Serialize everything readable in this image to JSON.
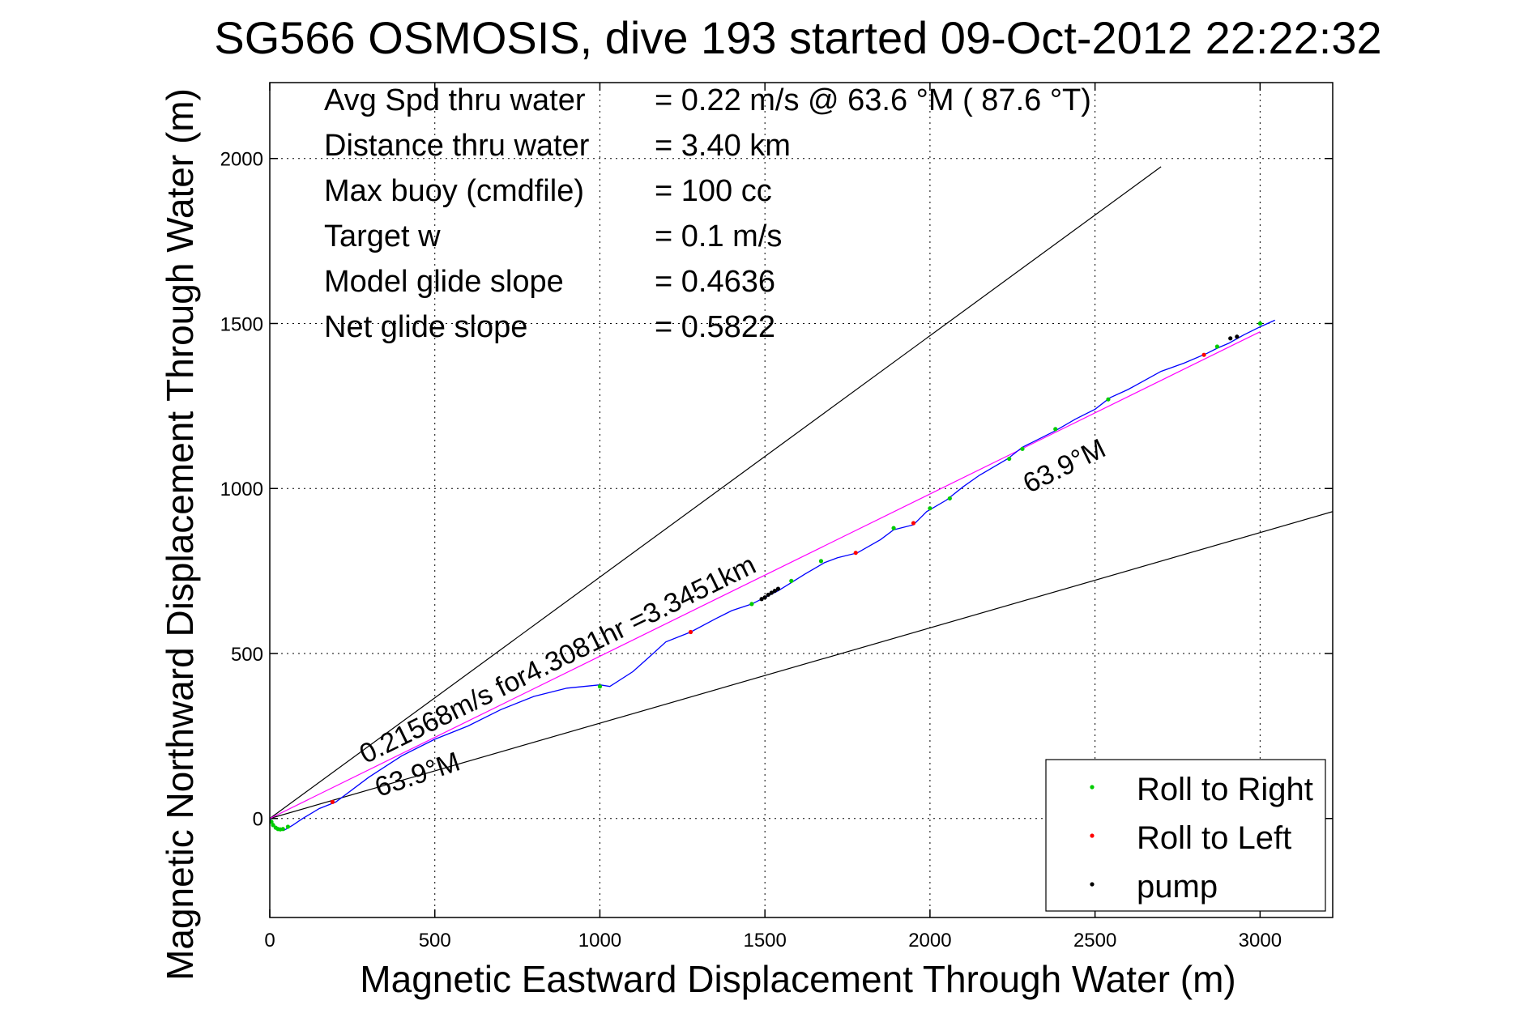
{
  "chart_data": {
    "type": "scatter",
    "title": "SG566 OSMOSIS, dive 193 started 09-Oct-2012 22:22:32",
    "xlabel": "Magnetic Eastward Displacement Through Water (m)",
    "ylabel": "Magnetic Northward Displacement Through Water (m)",
    "xlim": [
      0,
      3220
    ],
    "ylim": [
      -300,
      2230
    ],
    "xticks": [
      0,
      500,
      1000,
      1500,
      2000,
      2500,
      3000
    ],
    "yticks": [
      0,
      500,
      1000,
      1500,
      2000
    ],
    "grid": true,
    "legend_position": "bottom-right",
    "info_lines": [
      {
        "label": "Avg Spd thru water",
        "value": "=  0.22 m/s @  63.6 °M ( 87.6 °T)"
      },
      {
        "label": "Distance thru water",
        "value": "=  3.40 km"
      },
      {
        "label": "Max buoy (cmdfile)",
        "value": "= 100 cc"
      },
      {
        "label": "Target w",
        "value": "= 0.1 m/s"
      },
      {
        "label": "Model glide slope",
        "value": "= 0.4636"
      },
      {
        "label": "Net glide slope",
        "value": "= 0.5822"
      }
    ],
    "annotations": [
      {
        "text": "0.21568m/s for4.3081hr =3.3451km",
        "x": 290,
        "y": 165,
        "angle_deg": 26.2
      },
      {
        "text": "63.9°M",
        "x": 330,
        "y": 65,
        "angle_deg": 18.5
      },
      {
        "text": "63.9°M",
        "x": 2300,
        "y": 985,
        "angle_deg": 26.2
      }
    ],
    "reference_lines": [
      {
        "name": "upper-bound",
        "x": [
          0,
          2700
        ],
        "y": [
          0,
          1975
        ],
        "color": "#000000"
      },
      {
        "name": "lower-bound",
        "x": [
          0,
          3220
        ],
        "y": [
          0,
          930
        ],
        "color": "#000000"
      },
      {
        "name": "mean-heading",
        "x": [
          0,
          3000
        ],
        "y": [
          0,
          1475
        ],
        "color": "#ff00ff"
      }
    ],
    "track": {
      "name": "track",
      "color": "#0000ff",
      "x": [
        0,
        20,
        45,
        70,
        100,
        150,
        200,
        300,
        400,
        500,
        600,
        700,
        800,
        900,
        1000,
        1030,
        1100,
        1150,
        1200,
        1275,
        1350,
        1400,
        1460,
        1500,
        1540,
        1580,
        1620,
        1680,
        1720,
        1780,
        1850,
        1890,
        1950,
        1990,
        2050,
        2100,
        2150,
        2235,
        2280,
        2380,
        2440,
        2500,
        2545,
        2600,
        2700,
        2770,
        2840,
        2870,
        2905,
        2950,
        3000,
        3045
      ],
      "y": [
        0,
        -30,
        -35,
        -20,
        0,
        30,
        50,
        125,
        190,
        240,
        280,
        330,
        370,
        395,
        405,
        400,
        445,
        490,
        535,
        565,
        605,
        630,
        650,
        670,
        690,
        715,
        740,
        775,
        790,
        805,
        845,
        875,
        890,
        930,
        965,
        1005,
        1040,
        1090,
        1125,
        1175,
        1210,
        1240,
        1275,
        1300,
        1355,
        1380,
        1410,
        1425,
        1440,
        1465,
        1490,
        1510
      ]
    },
    "series": [
      {
        "name": "Roll to Right",
        "color": "#00cc00",
        "x": [
          5,
          10,
          18,
          25,
          32,
          40,
          55,
          1000,
          1460,
          1580,
          1670,
          1890,
          2000,
          2060,
          2240,
          2280,
          2380,
          2540,
          2870,
          3000
        ],
        "y": [
          -10,
          -20,
          -28,
          -32,
          -33,
          -32,
          -25,
          400,
          650,
          720,
          780,
          880,
          940,
          970,
          1090,
          1120,
          1180,
          1270,
          1430,
          1500
        ]
      },
      {
        "name": "Roll to Left",
        "color": "#ff0000",
        "x": [
          190,
          1275,
          1775,
          1950,
          2830
        ],
        "y": [
          50,
          565,
          805,
          895,
          1405
        ]
      },
      {
        "name": "pump",
        "color": "#000000",
        "x": [
          1490,
          1500,
          1510,
          1520,
          1530,
          1540,
          2910,
          2930
        ],
        "y": [
          665,
          670,
          678,
          684,
          690,
          696,
          1455,
          1460
        ]
      }
    ]
  }
}
